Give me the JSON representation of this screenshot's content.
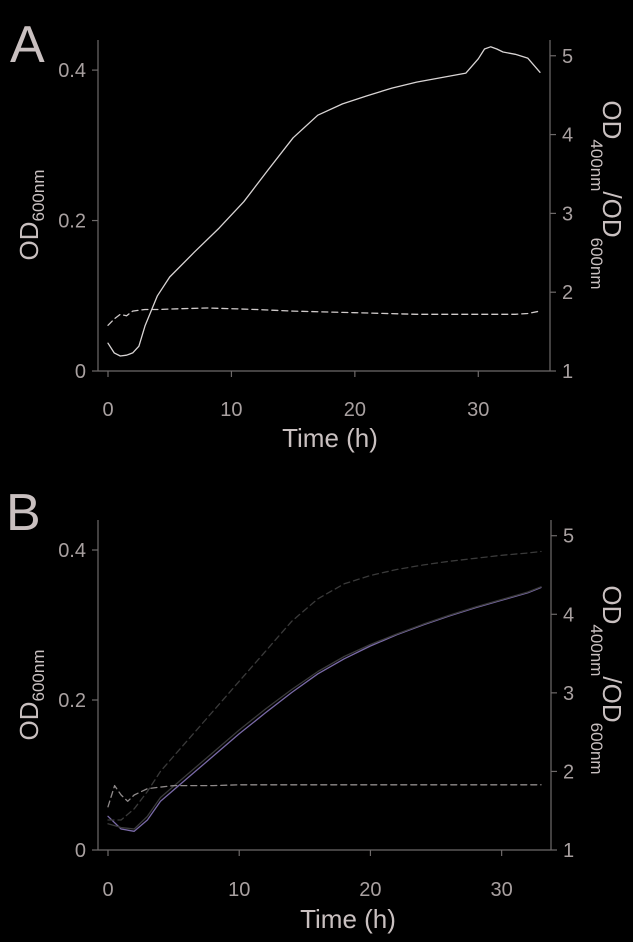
{
  "chart_data": [
    {
      "type": "line",
      "panel_label": "A",
      "xlabel": "Time (h)",
      "ylabel_left": {
        "main": "OD",
        "sub": "600nm"
      },
      "ylabel_right": {
        "main1": "OD",
        "sub1": "400nm",
        "main2": "/OD",
        "sub2": "600nm"
      },
      "xlim": [
        0,
        35
      ],
      "ylim_left": [
        0,
        0.44
      ],
      "ylim_right": [
        1,
        5.2
      ],
      "xticks": [
        0,
        10,
        20,
        30
      ],
      "xtick_labels": [
        "0",
        "10",
        "20",
        "30"
      ],
      "yticks_left": [
        0,
        0.2,
        0.4
      ],
      "ytick_left_labels": [
        "0",
        "0.2",
        "0.4"
      ],
      "yticks_right": [
        1,
        2,
        3,
        4,
        5
      ],
      "ytick_right_labels": [
        "1",
        "2",
        "3",
        "4",
        "5"
      ],
      "series": [
        {
          "axis": "left",
          "style": "solid",
          "color": "#d8d4d4",
          "x": [
            0,
            0.5,
            1,
            1.5,
            2,
            2.5,
            3,
            4,
            5,
            7,
            9,
            11,
            13,
            15,
            17,
            19,
            21,
            23,
            25,
            27,
            29,
            30,
            30.5,
            31,
            31.5,
            32,
            33,
            34,
            35
          ],
          "y": [
            0.037,
            0.024,
            0.02,
            0.021,
            0.024,
            0.033,
            0.06,
            0.1,
            0.125,
            0.158,
            0.19,
            0.225,
            0.268,
            0.31,
            0.34,
            0.355,
            0.366,
            0.376,
            0.384,
            0.39,
            0.396,
            0.415,
            0.428,
            0.431,
            0.428,
            0.424,
            0.421,
            0.416,
            0.397
          ]
        },
        {
          "axis": "right",
          "style": "dashed",
          "color": "#cfcaca",
          "x": [
            0,
            0.5,
            1,
            1.5,
            2,
            3,
            4,
            6,
            8,
            10,
            12,
            15,
            20,
            25,
            30,
            33,
            34,
            35
          ],
          "y": [
            1.58,
            1.66,
            1.72,
            1.7,
            1.76,
            1.78,
            1.78,
            1.79,
            1.8,
            1.79,
            1.78,
            1.76,
            1.74,
            1.72,
            1.72,
            1.72,
            1.73,
            1.76
          ]
        }
      ]
    },
    {
      "type": "line",
      "panel_label": "B",
      "xlabel": "Time (h)",
      "ylabel_left": {
        "main": "OD",
        "sub": "600nm"
      },
      "ylabel_right": {
        "main1": "OD",
        "sub1": "400nm",
        "main2": "/OD",
        "sub2": "600nm"
      },
      "xlim": [
        0,
        33
      ],
      "ylim_left": [
        0,
        0.44
      ],
      "ylim_right": [
        1,
        5.2
      ],
      "xticks": [
        0,
        10,
        20,
        30
      ],
      "xtick_labels": [
        "0",
        "10",
        "20",
        "30"
      ],
      "yticks_left": [
        0,
        0.2,
        0.4
      ],
      "ytick_left_labels": [
        "0",
        "0.2",
        "0.4"
      ],
      "yticks_right": [
        1,
        2,
        3,
        4,
        5
      ],
      "ytick_right_labels": [
        "1",
        "2",
        "3",
        "4",
        "5"
      ],
      "series": [
        {
          "axis": "left",
          "style": "solid",
          "color": "#7a6aa8",
          "x": [
            0,
            1,
            2,
            3,
            4,
            6,
            8,
            10,
            12,
            14,
            16,
            18,
            20,
            22,
            24,
            26,
            28,
            30,
            32,
            33
          ],
          "y": [
            0.045,
            0.028,
            0.025,
            0.04,
            0.065,
            0.095,
            0.125,
            0.155,
            0.183,
            0.21,
            0.235,
            0.255,
            0.272,
            0.287,
            0.3,
            0.312,
            0.323,
            0.333,
            0.343,
            0.35
          ]
        },
        {
          "axis": "left",
          "style": "solid",
          "color": "#3a3a3a",
          "x": [
            0,
            1,
            2,
            3,
            4,
            6,
            8,
            10,
            12,
            14,
            16,
            18,
            20,
            22,
            24,
            26,
            28,
            30,
            32,
            33
          ],
          "y": [
            0.035,
            0.03,
            0.028,
            0.045,
            0.07,
            0.1,
            0.13,
            0.16,
            0.188,
            0.214,
            0.238,
            0.258,
            0.274,
            0.288,
            0.301,
            0.313,
            0.324,
            0.334,
            0.344,
            0.351
          ]
        },
        {
          "axis": "left",
          "style": "dashed",
          "color": "#3a3a3a",
          "x": [
            0,
            1,
            2,
            3,
            4,
            6,
            8,
            10,
            12,
            14,
            16,
            18,
            20,
            22,
            24,
            26,
            28,
            30,
            32,
            33
          ],
          "y": [
            0.04,
            0.04,
            0.055,
            0.078,
            0.105,
            0.145,
            0.185,
            0.225,
            0.265,
            0.305,
            0.335,
            0.355,
            0.366,
            0.374,
            0.38,
            0.385,
            0.389,
            0.393,
            0.396,
            0.398
          ]
        },
        {
          "axis": "right",
          "style": "dashed",
          "color": "#8f8a8a",
          "x": [
            0,
            0.5,
            1,
            1.5,
            2,
            3,
            4,
            5,
            6,
            8,
            10,
            15,
            20,
            25,
            30,
            33
          ],
          "y": [
            1.55,
            1.82,
            1.7,
            1.62,
            1.7,
            1.78,
            1.8,
            1.82,
            1.82,
            1.82,
            1.83,
            1.83,
            1.83,
            1.83,
            1.83,
            1.83
          ]
        }
      ]
    }
  ]
}
